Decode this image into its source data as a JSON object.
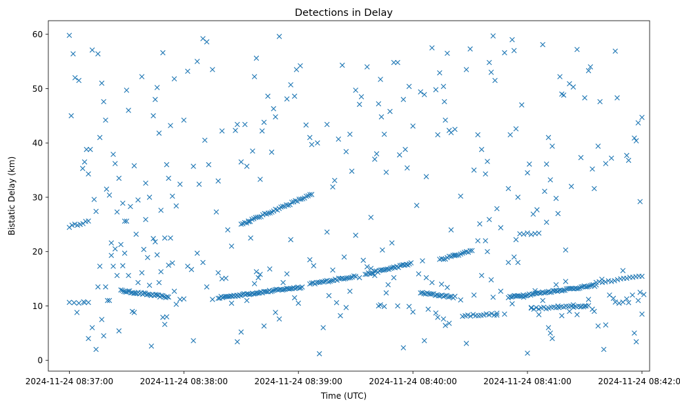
{
  "chart_data": {
    "type": "scatter",
    "title": "Detections in Delay",
    "xlabel": "Time (UTC)",
    "ylabel": "Bistatic Delay (km)",
    "x_unit": "seconds after 2024-11-24 08:37:00 UTC",
    "xlim": [
      -11,
      304
    ],
    "ylim": [
      -2,
      62.5
    ],
    "x_ticks": [
      {
        "value": 0,
        "label": "2024-11-24 08:37:00"
      },
      {
        "value": 60,
        "label": "2024-11-24 08:38:00"
      },
      {
        "value": 120,
        "label": "2024-11-24 08:39:00"
      },
      {
        "value": 180,
        "label": "2024-11-24 08:40:00"
      },
      {
        "value": 240,
        "label": "2024-11-24 08:41:00"
      },
      {
        "value": 300,
        "label": "2024-11-24 08:42:00"
      }
    ],
    "y_ticks": [
      0,
      10,
      20,
      30,
      40,
      50,
      60
    ],
    "marker": "x",
    "color": "#1f77b4",
    "grid": false,
    "legend": "none",
    "tracks": [
      {
        "name": "track-1",
        "t_start": 0,
        "t_end": 10,
        "y_start": 24.6,
        "y_end": 25.6,
        "count": 8
      },
      {
        "name": "track-2",
        "t_start": 27,
        "t_end": 52,
        "y_start": 12.8,
        "y_end": 11.6,
        "count": 34
      },
      {
        "name": "track-3",
        "t_start": 78,
        "t_end": 122,
        "y_start": 11.5,
        "y_end": 13.5,
        "count": 60
      },
      {
        "name": "track-4",
        "t_start": 90,
        "t_end": 127,
        "y_start": 25.0,
        "y_end": 30.5,
        "count": 40
      },
      {
        "name": "track-5",
        "t_start": 126,
        "t_end": 150,
        "y_start": 14.0,
        "y_end": 15.5,
        "count": 28
      },
      {
        "name": "track-6",
        "t_start": 155,
        "t_end": 179,
        "y_start": 15.8,
        "y_end": 17.8,
        "count": 30
      },
      {
        "name": "track-7",
        "t_start": 184,
        "t_end": 202,
        "y_start": 12.4,
        "y_end": 11.6,
        "count": 22
      },
      {
        "name": "track-8",
        "t_start": 194,
        "t_end": 211,
        "y_start": 18.5,
        "y_end": 20.2,
        "count": 18
      },
      {
        "name": "track-9",
        "t_start": 206,
        "t_end": 224,
        "y_start": 8.2,
        "y_end": 8.5,
        "count": 14
      },
      {
        "name": "track-10",
        "t_start": 230,
        "t_end": 276,
        "y_start": 11.6,
        "y_end": 13.8,
        "count": 60
      },
      {
        "name": "track-11",
        "t_start": 236,
        "t_end": 246,
        "y_start": 23.2,
        "y_end": 23.4,
        "count": 6
      },
      {
        "name": "track-12",
        "t_start": 242,
        "t_end": 272,
        "y_start": 9.5,
        "y_end": 10.0,
        "count": 24
      },
      {
        "name": "track-13",
        "t_start": 276,
        "t_end": 300,
        "y_start": 14.2,
        "y_end": 15.6,
        "count": 16
      },
      {
        "name": "track-14",
        "t_start": 0,
        "t_end": 10,
        "y_start": 10.5,
        "y_end": 10.8,
        "count": 5
      }
    ],
    "scattered_points": [
      [
        0,
        59.8
      ],
      [
        1,
        45
      ],
      [
        2,
        56.4
      ],
      [
        3,
        52
      ],
      [
        4,
        8.8
      ],
      [
        5,
        51.5
      ],
      [
        7,
        35.3
      ],
      [
        8,
        36.5
      ],
      [
        9,
        38.8
      ],
      [
        10,
        34.3
      ],
      [
        11,
        38.8
      ],
      [
        12,
        57.1
      ],
      [
        13,
        29.6
      ],
      [
        14,
        27.4
      ],
      [
        15,
        56.4
      ],
      [
        16,
        41
      ],
      [
        17,
        51
      ],
      [
        18,
        47.6
      ],
      [
        19,
        44.2
      ],
      [
        19.5,
        31.5
      ],
      [
        21,
        30.4
      ],
      [
        22,
        21.6
      ],
      [
        23,
        37.9
      ],
      [
        24,
        36.2
      ],
      [
        25,
        27.3
      ],
      [
        26,
        33.5
      ],
      [
        28,
        28.9
      ],
      [
        29,
        25.6
      ],
      [
        30,
        49.7
      ],
      [
        31,
        46
      ],
      [
        32,
        28.3
      ],
      [
        34,
        35.8
      ],
      [
        35,
        23.2
      ],
      [
        36,
        29.5
      ],
      [
        38,
        52.2
      ],
      [
        40,
        32.6
      ],
      [
        42,
        30
      ],
      [
        44,
        45
      ],
      [
        45,
        48
      ],
      [
        46,
        50.2
      ],
      [
        47,
        41.8
      ],
      [
        48,
        27.6
      ],
      [
        49,
        56.6
      ],
      [
        50,
        22.5
      ],
      [
        51,
        36
      ],
      [
        52,
        33.5
      ],
      [
        53,
        43.2
      ],
      [
        54,
        30.2
      ],
      [
        55,
        51.8
      ],
      [
        56,
        28.4
      ],
      [
        58,
        32.4
      ],
      [
        60,
        44.2
      ],
      [
        62,
        53.2
      ],
      [
        65,
        35.7
      ],
      [
        67,
        55
      ],
      [
        68,
        32.4
      ],
      [
        70,
        59.2
      ],
      [
        71,
        40.5
      ],
      [
        72,
        58.6
      ],
      [
        73,
        36
      ],
      [
        75,
        53.5
      ],
      [
        77,
        27.3
      ],
      [
        78,
        33
      ],
      [
        80,
        42.2
      ],
      [
        83,
        24
      ],
      [
        85,
        21
      ],
      [
        87,
        42.3
      ],
      [
        88,
        43.4
      ],
      [
        90,
        36.5
      ],
      [
        92,
        43.4
      ],
      [
        93,
        35.7
      ],
      [
        94,
        25.5
      ],
      [
        96,
        38.5
      ],
      [
        97,
        52.2
      ],
      [
        98,
        55.6
      ],
      [
        100,
        33.3
      ],
      [
        101,
        42.2
      ],
      [
        102,
        43.8
      ],
      [
        104,
        48.6
      ],
      [
        106,
        38.3
      ],
      [
        107,
        46.3
      ],
      [
        108,
        44.8
      ],
      [
        110,
        59.6
      ],
      [
        114,
        48.1
      ],
      [
        116,
        50.7
      ],
      [
        118,
        48.6
      ],
      [
        119,
        53.5
      ],
      [
        121,
        54.2
      ],
      [
        124,
        43.3
      ],
      [
        126,
        41
      ],
      [
        127,
        39.7
      ],
      [
        130,
        40
      ],
      [
        135,
        43.4
      ],
      [
        138,
        31.9
      ],
      [
        139,
        33.1
      ],
      [
        141,
        40.7
      ],
      [
        143,
        54.3
      ],
      [
        145,
        38.4
      ],
      [
        147,
        41.6
      ],
      [
        148,
        34.8
      ],
      [
        150,
        49.7
      ],
      [
        152,
        47.1
      ],
      [
        153,
        48.5
      ],
      [
        156,
        54
      ],
      [
        158,
        26.3
      ],
      [
        160,
        37
      ],
      [
        161,
        38
      ],
      [
        162,
        47.2
      ],
      [
        163,
        51.7
      ],
      [
        163.5,
        44.8
      ],
      [
        165,
        41.6
      ],
      [
        166,
        34.6
      ],
      [
        168,
        45.8
      ],
      [
        170,
        54.8
      ],
      [
        172,
        54.8
      ],
      [
        173,
        37.8
      ],
      [
        175,
        48
      ],
      [
        176,
        38.8
      ],
      [
        177,
        35.4
      ],
      [
        178,
        50.4
      ],
      [
        180,
        43.1
      ],
      [
        182,
        28.5
      ],
      [
        184,
        49.4
      ],
      [
        186,
        48.9
      ],
      [
        187,
        33.8
      ],
      [
        190,
        57.5
      ],
      [
        192,
        49.8
      ],
      [
        193,
        41.5
      ],
      [
        194,
        52.9
      ],
      [
        196,
        50.4
      ],
      [
        196.5,
        47.6
      ],
      [
        197,
        44.2
      ],
      [
        198,
        56.5
      ],
      [
        199,
        42.3
      ],
      [
        200,
        41.9
      ],
      [
        202,
        42.5
      ],
      [
        205,
        30.2
      ],
      [
        208,
        53.5
      ],
      [
        210,
        57.3
      ],
      [
        212,
        35
      ],
      [
        214,
        41.5
      ],
      [
        216,
        38.8
      ],
      [
        218,
        34.3
      ],
      [
        219,
        36.6
      ],
      [
        220,
        54.8
      ],
      [
        221,
        53
      ],
      [
        222,
        59.7
      ],
      [
        223,
        51.5
      ],
      [
        224,
        27.9
      ],
      [
        226,
        24.4
      ],
      [
        228,
        56.6
      ],
      [
        230,
        31.6
      ],
      [
        231,
        41.5
      ],
      [
        232,
        59
      ],
      [
        233,
        57
      ],
      [
        234,
        42.6
      ],
      [
        235,
        30
      ],
      [
        237,
        47
      ],
      [
        240,
        34.5
      ],
      [
        241,
        36.1
      ],
      [
        243,
        26.9
      ],
      [
        245,
        27.7
      ],
      [
        248,
        58.1
      ],
      [
        249,
        31.1
      ],
      [
        250,
        36.1
      ],
      [
        251,
        41
      ],
      [
        252,
        33.2
      ],
      [
        253,
        39.4
      ],
      [
        255,
        29.8
      ],
      [
        256,
        27
      ],
      [
        257,
        52.2
      ],
      [
        258,
        49
      ],
      [
        259,
        48.8
      ],
      [
        260,
        20.3
      ],
      [
        262,
        50.9
      ],
      [
        263,
        32
      ],
      [
        264,
        50.3
      ],
      [
        266,
        57.2
      ],
      [
        268,
        37.3
      ],
      [
        270,
        48.3
      ],
      [
        272,
        53.3
      ],
      [
        273,
        54
      ],
      [
        274,
        35.2
      ],
      [
        275,
        31.6
      ],
      [
        277,
        39.4
      ],
      [
        278,
        47.6
      ],
      [
        281,
        36.2
      ],
      [
        284,
        37.2
      ],
      [
        286,
        56.9
      ],
      [
        287,
        48.3
      ],
      [
        290,
        16.5
      ],
      [
        292,
        37.7
      ],
      [
        293,
        36.8
      ],
      [
        296,
        40.9
      ],
      [
        297,
        40.4
      ],
      [
        298,
        43.7
      ],
      [
        300,
        44.7
      ],
      [
        299,
        29.2
      ],
      [
        8,
        10.6
      ],
      [
        10,
        4
      ],
      [
        12,
        6
      ],
      [
        14,
        2
      ],
      [
        15,
        13.5
      ],
      [
        16,
        17.3
      ],
      [
        17,
        7.5
      ],
      [
        18,
        4.5
      ],
      [
        19,
        13.5
      ],
      [
        20,
        11
      ],
      [
        21,
        11
      ],
      [
        22,
        19.3
      ],
      [
        23,
        17.3
      ],
      [
        24,
        20.5
      ],
      [
        25,
        15.6
      ],
      [
        26,
        5.4
      ],
      [
        27,
        21.3
      ],
      [
        28,
        17.4
      ],
      [
        29,
        19.7
      ],
      [
        30,
        25.6
      ],
      [
        31,
        15.6
      ],
      [
        33,
        9
      ],
      [
        34,
        8.8
      ],
      [
        36,
        14.3
      ],
      [
        38,
        16.1
      ],
      [
        39,
        20.4
      ],
      [
        40,
        25.9
      ],
      [
        41,
        18.9
      ],
      [
        42,
        13.8
      ],
      [
        43,
        2.6
      ],
      [
        44,
        22.4
      ],
      [
        45,
        21.8
      ],
      [
        46,
        19.4
      ],
      [
        47,
        14.3
      ],
      [
        48,
        16.3
      ],
      [
        49,
        7.9
      ],
      [
        50,
        6.6
      ],
      [
        51,
        8
      ],
      [
        52,
        17.5
      ],
      [
        53,
        22.5
      ],
      [
        54,
        17.9
      ],
      [
        55,
        12.7
      ],
      [
        56,
        10.3
      ],
      [
        58,
        11.2
      ],
      [
        60,
        11.3
      ],
      [
        62,
        17.3
      ],
      [
        64,
        16.7
      ],
      [
        65,
        3.6
      ],
      [
        67,
        19.7
      ],
      [
        70,
        18
      ],
      [
        72,
        13.5
      ],
      [
        75,
        11.2
      ],
      [
        78,
        16.1
      ],
      [
        80,
        15
      ],
      [
        82,
        15.1
      ],
      [
        85,
        10.5
      ],
      [
        88,
        3.4
      ],
      [
        90,
        5.2
      ],
      [
        93,
        11
      ],
      [
        95,
        22.5
      ],
      [
        97,
        14.1
      ],
      [
        98,
        16.3
      ],
      [
        99,
        15.2
      ],
      [
        100,
        15.8
      ],
      [
        102,
        6.3
      ],
      [
        105,
        16.8
      ],
      [
        108,
        8.8
      ],
      [
        110,
        7.6
      ],
      [
        112,
        14.3
      ],
      [
        114,
        15.9
      ],
      [
        116,
        22.2
      ],
      [
        118,
        11.5
      ],
      [
        120,
        10.5
      ],
      [
        126,
        18.5
      ],
      [
        128,
        17.4
      ],
      [
        131,
        1.2
      ],
      [
        133,
        6
      ],
      [
        135,
        23.6
      ],
      [
        136,
        11.9
      ],
      [
        138,
        16.6
      ],
      [
        140,
        10.6
      ],
      [
        142,
        8.2
      ],
      [
        144,
        19
      ],
      [
        145,
        9.7
      ],
      [
        147,
        12.7
      ],
      [
        150,
        23
      ],
      [
        152,
        15.2
      ],
      [
        154,
        18.4
      ],
      [
        156,
        17.2
      ],
      [
        158,
        16.9
      ],
      [
        160,
        15.6
      ],
      [
        162,
        10
      ],
      [
        163,
        10.2
      ],
      [
        164,
        20.3
      ],
      [
        165,
        9.9
      ],
      [
        166,
        12.4
      ],
      [
        167,
        13.9
      ],
      [
        169,
        21.6
      ],
      [
        170,
        15.2
      ],
      [
        172,
        10
      ],
      [
        175,
        2.3
      ],
      [
        178,
        9.9
      ],
      [
        180,
        8.9
      ],
      [
        183,
        15.9
      ],
      [
        185,
        18.3
      ],
      [
        186,
        3.6
      ],
      [
        187,
        15.2
      ],
      [
        188,
        9.4
      ],
      [
        190,
        14.3
      ],
      [
        192,
        8.7
      ],
      [
        193,
        7.9
      ],
      [
        195,
        14
      ],
      [
        196,
        7.6
      ],
      [
        197,
        6.4
      ],
      [
        198,
        13.4
      ],
      [
        199,
        6.8
      ],
      [
        200,
        24
      ],
      [
        202,
        19.4
      ],
      [
        205,
        11.1
      ],
      [
        208,
        3.1
      ],
      [
        212,
        12
      ],
      [
        214,
        22
      ],
      [
        215,
        25.1
      ],
      [
        216,
        15.6
      ],
      [
        218,
        22
      ],
      [
        219,
        20
      ],
      [
        220,
        25.9
      ],
      [
        221,
        14.8
      ],
      [
        222,
        11.6
      ],
      [
        224,
        8.3
      ],
      [
        226,
        12.7
      ],
      [
        228,
        8.5
      ],
      [
        230,
        18
      ],
      [
        232,
        10.4
      ],
      [
        233,
        19
      ],
      [
        234,
        22.2
      ],
      [
        235,
        18
      ],
      [
        238,
        11.6
      ],
      [
        240,
        1.3
      ],
      [
        242,
        9.7
      ],
      [
        244,
        12.8
      ],
      [
        246,
        8.4
      ],
      [
        248,
        11
      ],
      [
        250,
        25.4
      ],
      [
        251,
        6
      ],
      [
        252,
        5
      ],
      [
        253,
        4
      ],
      [
        255,
        13.9
      ],
      [
        256,
        10
      ],
      [
        258,
        8.2
      ],
      [
        260,
        14.5
      ],
      [
        262,
        9
      ],
      [
        264,
        10.2
      ],
      [
        266,
        8.4
      ],
      [
        268,
        9.9
      ],
      [
        270,
        10
      ],
      [
        272,
        11.2
      ],
      [
        274,
        9.4
      ],
      [
        275,
        9
      ],
      [
        277,
        6.3
      ],
      [
        279,
        14.9
      ],
      [
        280,
        2
      ],
      [
        281,
        6.5
      ],
      [
        283,
        12
      ],
      [
        285,
        11.4
      ],
      [
        286,
        10.7
      ],
      [
        288,
        10.5
      ],
      [
        290,
        10.7
      ],
      [
        292,
        11.3
      ],
      [
        293,
        10.6
      ],
      [
        295,
        12
      ],
      [
        296,
        5
      ],
      [
        297,
        3.4
      ],
      [
        298,
        11
      ],
      [
        299,
        12.5
      ],
      [
        300,
        8.5
      ],
      [
        301,
        12.1
      ]
    ]
  }
}
